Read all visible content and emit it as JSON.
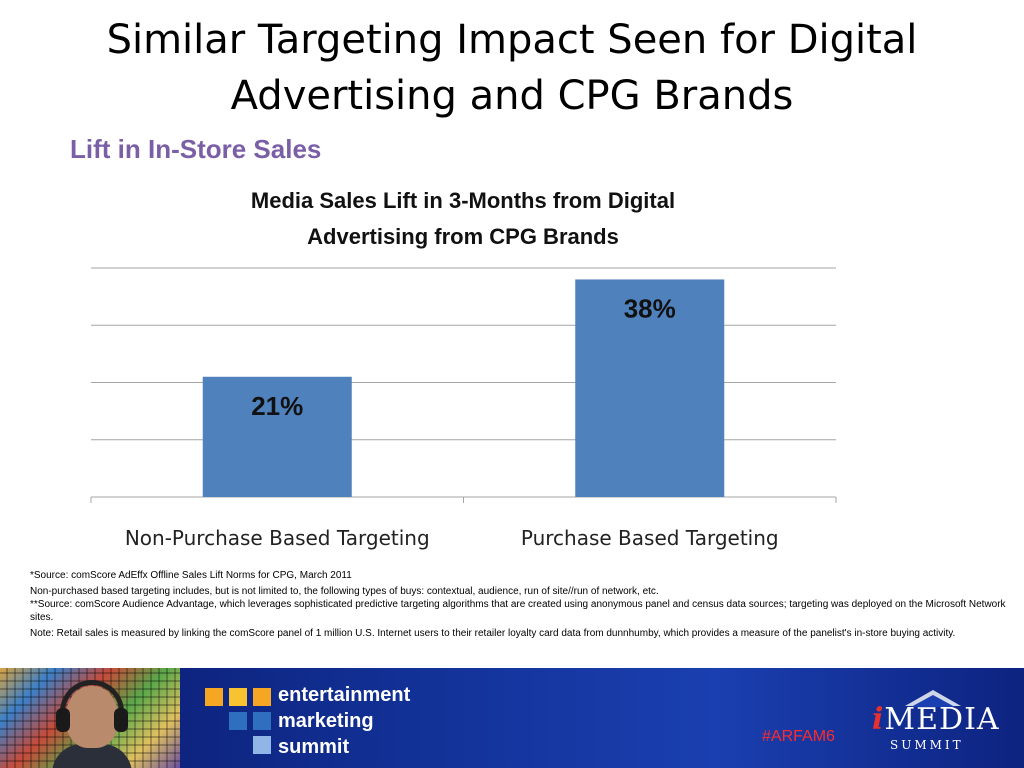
{
  "slide": {
    "title_line1": "Similar Targeting Impact Seen for Digital",
    "title_line2": "Advertising and CPG Brands",
    "subtitle": "Lift in In-Store Sales"
  },
  "chart_data": {
    "type": "bar",
    "title_line1": "Media Sales Lift in 3-Months from Digital",
    "title_line2": "Advertising from CPG Brands",
    "categories": [
      "Non-Purchase Based Targeting",
      "Purchase Based Targeting"
    ],
    "values": [
      21,
      38
    ],
    "data_labels": [
      "21%",
      "38%"
    ],
    "ylim": [
      0,
      40
    ],
    "gridlines": true,
    "y_tick_labels_shown": false,
    "bar_color": "#4f81bd",
    "gridline_color": "#a6a6a6"
  },
  "notes": {
    "source1": "*Source:  comScore AdEffx Offline Sales Lift Norms for CPG, March 2011",
    "line2": "Non-purchased based targeting includes, but is not limited to, the following types of buys: contextual, audience, run of site//run of network, etc.",
    "source2": "**Source: comScore Audience Advantage, which leverages sophisticated predictive targeting algorithms that are created using anonymous panel and census data sources; targeting was deployed on the Microsoft Network sites.",
    "note": "Note: Retail sales is measured by linking the comScore panel of 1 million U.S. Internet users to their retailer loyalty card data from dunnhumby, which provides a measure of the panelist's in-store buying activity."
  },
  "footer": {
    "brand_line1": "entertainment",
    "brand_line2": "marketing",
    "brand_line3": "summit",
    "hashtag": "#ARFAM6",
    "logo_main": "MEDIA",
    "logo_i": "i",
    "logo_sub": "SUMMIT",
    "colors": {
      "square_orange": "#f5a623",
      "square_yellow": "#f7c331",
      "square_blue": "#2f6fbf",
      "square_light": "#8fb6e6",
      "hashtag": "#ff2a2a",
      "logo_i": "#e83030"
    }
  }
}
